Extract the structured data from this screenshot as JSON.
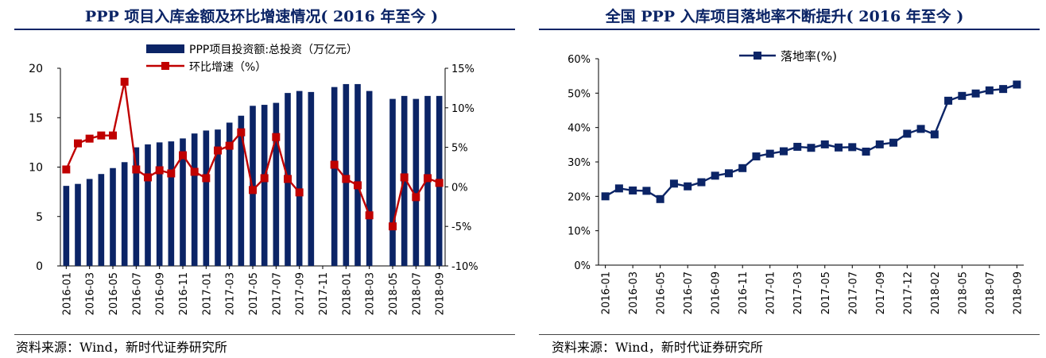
{
  "left_panel": {
    "title": "PPP 项目入库金额及环比增速情况( 2016 年至今 )",
    "source": "资料来源：Wind，新时代证券研究所"
  },
  "right_panel": {
    "title": "全国 PPP 入库项目落地率不断提升( 2016 年至今 )",
    "source": "资料来源：Wind，新时代证券研究所"
  },
  "colors": {
    "title": "#0b2466",
    "bar": "#0b2466",
    "growth_line": "#c00000",
    "rate_line": "#0b2466"
  },
  "chart_data": [
    {
      "type": "bar",
      "title": "PPP 项目入库金额及环比增速情况( 2016 年至今 )",
      "xlabels": [
        "2016-01",
        "2016-03",
        "2016-05",
        "2016-07",
        "2016-09",
        "2016-11",
        "2017-01",
        "2017-03",
        "2017-05",
        "2017-07",
        "2017-09",
        "2017-11",
        "2018-01",
        "2018-03",
        "2018-05",
        "2018-07",
        "2018-09"
      ],
      "ylim": [
        0,
        20
      ],
      "yticks": [
        "0",
        "5",
        "10",
        "15",
        "20"
      ],
      "y2lim": [
        -10,
        15
      ],
      "y2ticks": [
        "-10%",
        "-5%",
        "0%",
        "5%",
        "10%",
        "15%"
      ],
      "legend_position": "top",
      "grid": false,
      "series": [
        {
          "name": "PPP项目投资额:总投资（万亿元）",
          "type": "bar",
          "axis": "left",
          "values": [
            8.1,
            8.3,
            8.8,
            9.3,
            9.9,
            10.5,
            12.0,
            12.3,
            12.5,
            12.6,
            12.9,
            13.4,
            13.7,
            13.8,
            14.5,
            15.2,
            16.2,
            16.3,
            16.5,
            17.5,
            17.7,
            17.6,
            null,
            18.1,
            18.4,
            18.4,
            17.7,
            null,
            16.9,
            17.2,
            16.9,
            17.2,
            17.2
          ]
        },
        {
          "name": "环比增速（%）",
          "type": "line",
          "axis": "right",
          "values": [
            2.2,
            5.5,
            6.1,
            6.5,
            6.5,
            13.3,
            2.2,
            1.2,
            2.1,
            1.7,
            4.0,
            1.9,
            1.1,
            4.6,
            5.2,
            6.9,
            -0.4,
            1.1,
            6.3,
            1.0,
            -0.7,
            null,
            null,
            2.8,
            1.0,
            0.2,
            -3.6,
            null,
            -5.0,
            1.2,
            -1.3,
            1.1,
            0.5
          ]
        }
      ]
    },
    {
      "type": "line",
      "title": "全国 PPP 入库项目落地率不断提升( 2016 年至今 )",
      "xlabels": [
        "2016-01",
        "2016-03",
        "2016-05",
        "2016-07",
        "2016-09",
        "2016-11",
        "2017-01",
        "2017-03",
        "2017-05",
        "2017-07",
        "2017-09",
        "2017-12",
        "2018-02",
        "2018-05",
        "2018-07",
        "2018-09"
      ],
      "ylim": [
        0,
        60
      ],
      "yticks": [
        "0%",
        "10%",
        "20%",
        "30%",
        "40%",
        "50%",
        "60%"
      ],
      "legend_position": "top",
      "grid": false,
      "series": [
        {
          "name": "落地率(%)",
          "values": [
            20.0,
            22.3,
            21.7,
            21.6,
            19.2,
            23.7,
            22.9,
            24.1,
            26.0,
            26.7,
            28.2,
            31.6,
            32.4,
            33.1,
            34.4,
            34.1,
            35.1,
            34.2,
            34.3,
            33.0,
            35.1,
            35.6,
            38.2,
            39.6,
            38.0,
            47.8,
            49.2,
            49.9,
            50.8,
            51.2,
            52.5
          ]
        }
      ]
    }
  ]
}
